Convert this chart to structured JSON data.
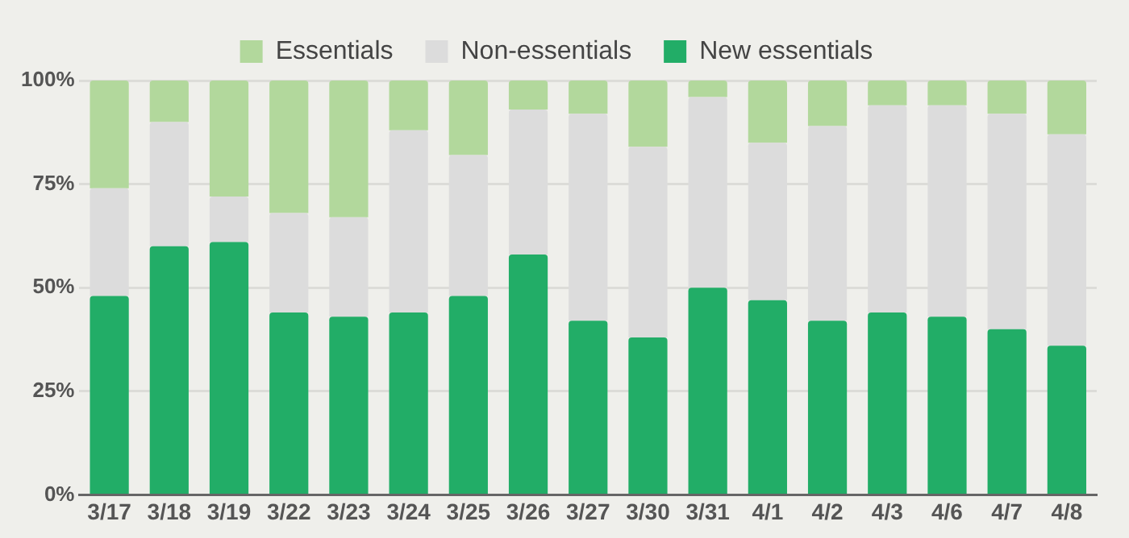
{
  "chart_data": {
    "type": "bar",
    "stacked": true,
    "categories": [
      "3/17",
      "3/18",
      "3/19",
      "3/22",
      "3/23",
      "3/24",
      "3/25",
      "3/26",
      "3/27",
      "3/30",
      "3/31",
      "4/1",
      "4/2",
      "4/3",
      "4/6",
      "4/7",
      "4/8"
    ],
    "series": [
      {
        "name": "New essentials",
        "color": "#22ad67",
        "values": [
          48,
          60,
          61,
          44,
          43,
          44,
          48,
          58,
          42,
          38,
          50,
          47,
          42,
          44,
          43,
          40,
          36
        ]
      },
      {
        "name": "Non-essentials",
        "color": "#dcdcdc",
        "values": [
          26,
          30,
          11,
          24,
          24,
          44,
          34,
          35,
          50,
          46,
          46,
          38,
          47,
          50,
          51,
          52,
          51
        ]
      },
      {
        "name": "Essentials",
        "color": "#b2d89c",
        "values": [
          26,
          10,
          28,
          32,
          33,
          12,
          18,
          7,
          8,
          16,
          4,
          15,
          11,
          6,
          6,
          8,
          13
        ]
      }
    ],
    "ylim": [
      0,
      100
    ],
    "yticks": [
      {
        "value": 0,
        "label": "0%"
      },
      {
        "value": 25,
        "label": "25%"
      },
      {
        "value": 50,
        "label": "50%"
      },
      {
        "value": 75,
        "label": "75%"
      },
      {
        "value": 100,
        "label": "100%"
      }
    ],
    "grid": "y",
    "legend": "top"
  }
}
